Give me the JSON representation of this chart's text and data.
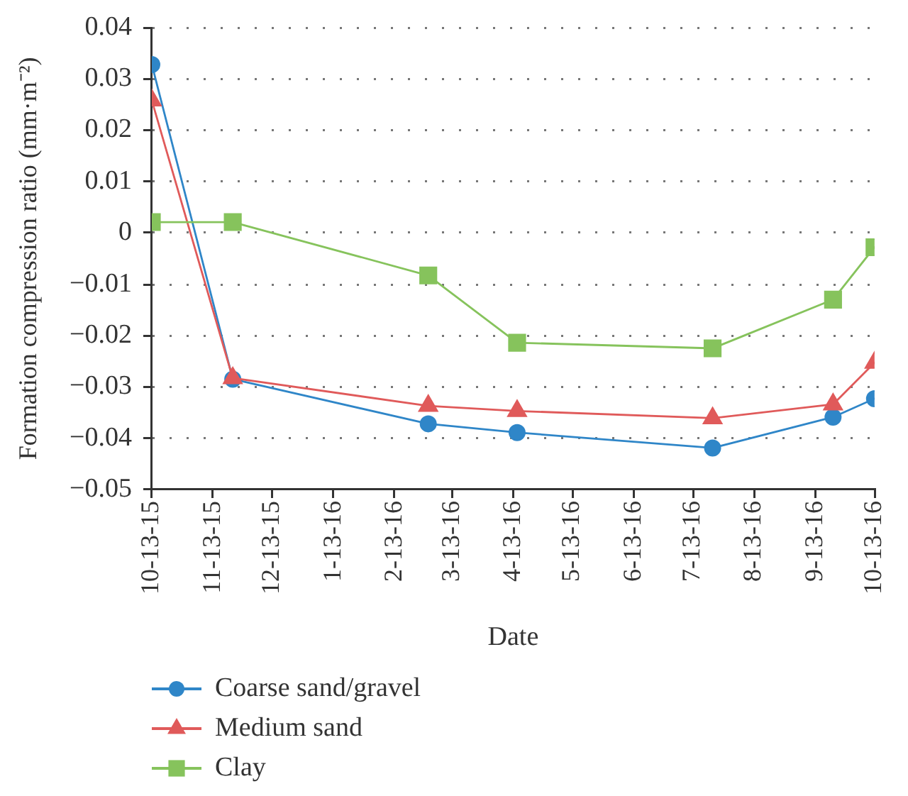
{
  "chart_data": {
    "type": "line",
    "xlabel": "Date",
    "ylabel": "Formation compression ratio (mm·m⁻²)",
    "x": [
      "2015-10-13",
      "2015-11-23",
      "2016-03-01",
      "2016-04-15",
      "2016-07-23",
      "2016-09-22",
      "2016-10-13"
    ],
    "series": [
      {
        "name": "Coarse sand/gravel",
        "color": "#2f86c8",
        "marker": "circle",
        "values": [
          0.0328,
          -0.0285,
          -0.0372,
          -0.0389,
          -0.0419,
          -0.0359,
          -0.0323
        ]
      },
      {
        "name": "Medium sand",
        "color": "#e05a5a",
        "marker": "triangle",
        "values": [
          0.0258,
          -0.0283,
          -0.0337,
          -0.0347,
          -0.0361,
          -0.0334,
          -0.0253
        ]
      },
      {
        "name": "Clay",
        "color": "#86c35c",
        "marker": "square",
        "values": [
          0.0021,
          0.0021,
          -0.0083,
          -0.0214,
          -0.0225,
          -0.013,
          -0.0028
        ]
      }
    ],
    "xlim": [
      "2015-10-13",
      "2016-10-13"
    ],
    "xticks": [
      {
        "value": "2015-10-13",
        "label": "10-13-15"
      },
      {
        "value": "2015-11-13",
        "label": "11-13-15"
      },
      {
        "value": "2015-12-13",
        "label": "12-13-15"
      },
      {
        "value": "2016-01-13",
        "label": "1-13-16"
      },
      {
        "value": "2016-02-13",
        "label": "2-13-16"
      },
      {
        "value": "2016-03-13",
        "label": "3-13-16"
      },
      {
        "value": "2016-04-13",
        "label": "4-13-16"
      },
      {
        "value": "2016-05-13",
        "label": "5-13-16"
      },
      {
        "value": "2016-06-13",
        "label": "6-13-16"
      },
      {
        "value": "2016-07-13",
        "label": "7-13-16"
      },
      {
        "value": "2016-08-13",
        "label": "8-13-16"
      },
      {
        "value": "2016-09-13",
        "label": "9-13-16"
      },
      {
        "value": "2016-10-13",
        "label": "10-13-16"
      }
    ],
    "ylim": [
      -0.05,
      0.04
    ],
    "yticks": [
      {
        "value": -0.05,
        "label": "−0.05"
      },
      {
        "value": -0.04,
        "label": "−0.04"
      },
      {
        "value": -0.03,
        "label": "−0.03"
      },
      {
        "value": -0.02,
        "label": "−0.02"
      },
      {
        "value": -0.01,
        "label": "−0.01"
      },
      0,
      0.01,
      0.02,
      0.03,
      0.04
    ],
    "grid": "y",
    "legend": "bottom left"
  }
}
